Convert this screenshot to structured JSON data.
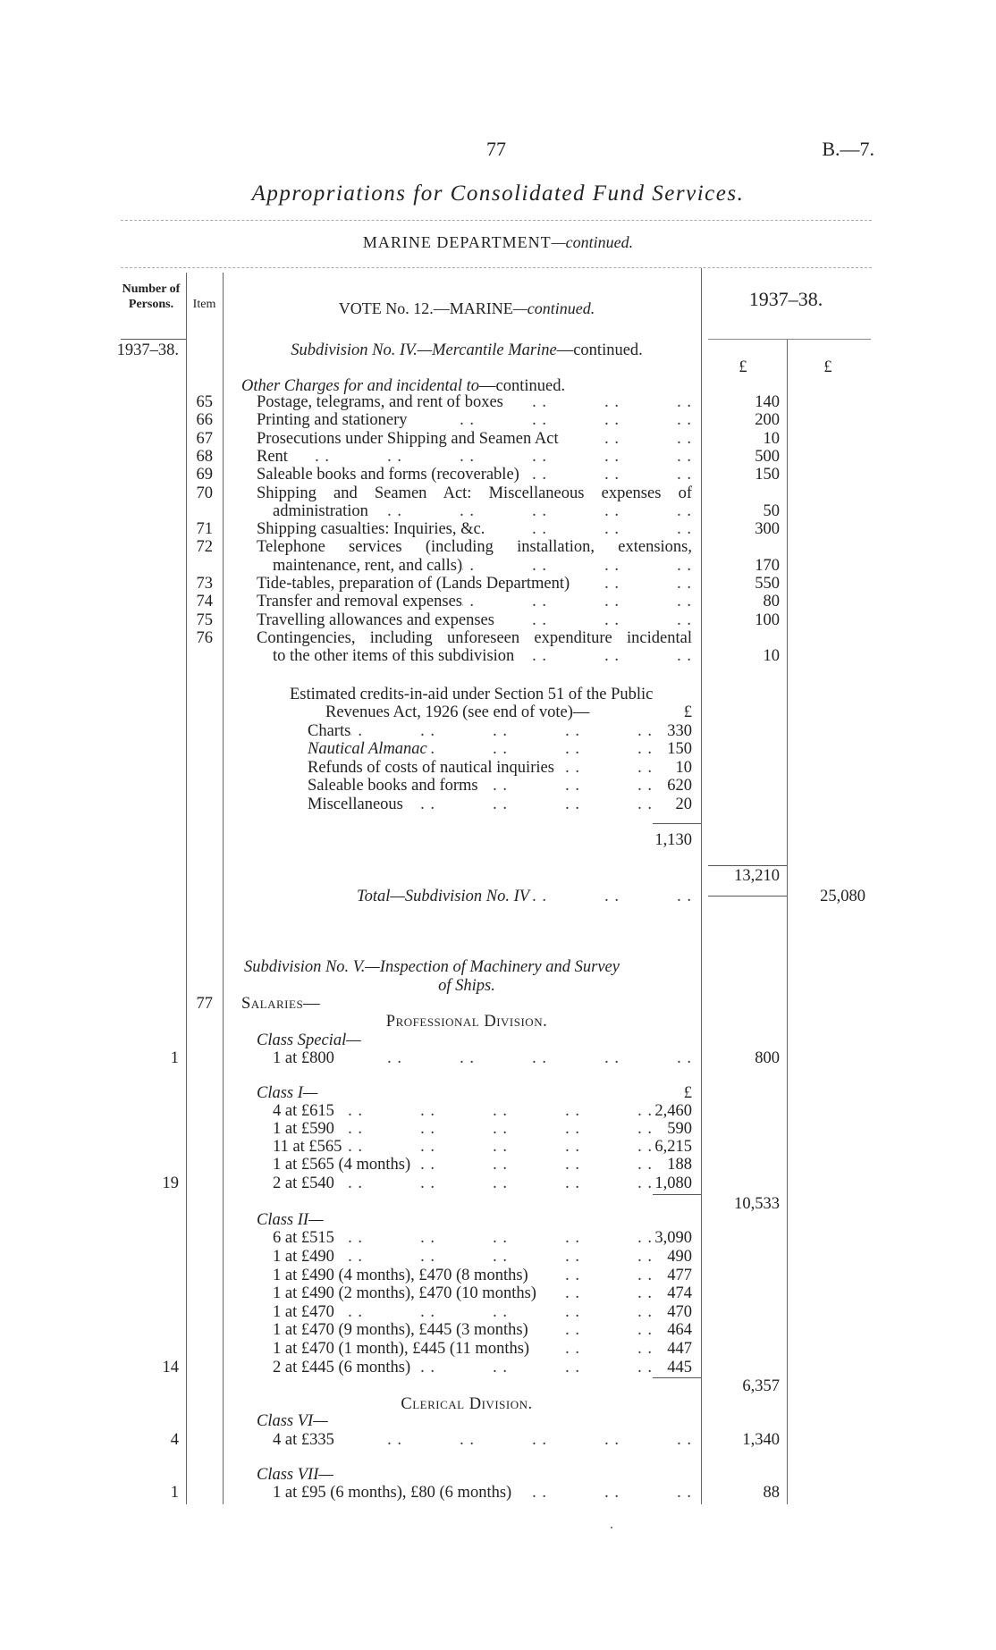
{
  "header": {
    "page_number": "77",
    "reference": "B.—7.",
    "title": "Appropriations for Consolidated Fund Services.",
    "department": "MARINE DEPARTMENT",
    "department_suffix": "—continued."
  },
  "table_header": {
    "number_of_persons": "Number of Persons.",
    "item": "Item",
    "vote": "VOTE No. 12.—MARINE",
    "vote_suffix": "—continued.",
    "year": "1937–38."
  },
  "rows": [
    {
      "persons": "1937–38.",
      "italic": "Subdivision No. IV.—Mercantile Marine",
      "text": "—continued."
    },
    {
      "col1": "£",
      "col2": "£"
    },
    {
      "italic": "Other Charges for and incidental to",
      "text": "—continued."
    },
    {
      "item": "65",
      "text": "Postage, telegrams, and rent of boxes",
      "col1": "140"
    },
    {
      "item": "66",
      "text": "Printing and stationery",
      "col1": "200"
    },
    {
      "item": "67",
      "text": "Prosecutions under Shipping and Seamen Act",
      "col1": "10"
    },
    {
      "item": "68",
      "text": "Rent",
      "col1": "500"
    },
    {
      "item": "69",
      "text": "Saleable books and forms (recoverable)",
      "col1": "150"
    },
    {
      "item": "70",
      "text": "Shipping and Seamen Act: Miscellaneous expenses of"
    },
    {
      "text": "administration",
      "col1": "50"
    },
    {
      "item": "71",
      "text": "Shipping casualties: Inquiries, &c.",
      "col1": "300"
    },
    {
      "item": "72",
      "text": "Telephone services (including installation, extensions,"
    },
    {
      "text": "maintenance, rent, and calls)",
      "col1": "170"
    },
    {
      "item": "73",
      "text": "Tide-tables, preparation of (Lands Department)",
      "col1": "550"
    },
    {
      "item": "74",
      "text": "Transfer and removal expenses",
      "col1": "80"
    },
    {
      "item": "75",
      "text": "Travelling allowances and expenses",
      "col1": "100"
    },
    {
      "item": "76",
      "text": "Contingencies, including unforeseen expenditure incidental"
    },
    {
      "text": "to the other items of this subdivision",
      "col1": "10"
    },
    {
      "text": "Estimated credits-in-aid under Section 51 of the Public"
    },
    {
      "text": "Revenues Act, 1926 (see end of vote)—",
      "inner": "£"
    },
    {
      "text": "Charts",
      "inner": "330"
    },
    {
      "italic": "Nautical Almanac",
      "inner": "150"
    },
    {
      "text": "Refunds of costs of nautical inquiries",
      "inner": "10"
    },
    {
      "text": "Saleable books and forms",
      "inner": "620"
    },
    {
      "text": "Miscellaneous",
      "inner": "20"
    },
    {
      "inner": "1,130"
    },
    {
      "col1": "13,210"
    },
    {
      "italic": "Total—Subdivision No. IV",
      "col2": "25,080"
    },
    {
      "italic": "Subdivision No. V.—Inspection of Machinery and Survey"
    },
    {
      "italic": "of Ships."
    },
    {
      "item": "77",
      "text": "Salaries—"
    },
    {
      "text": "Professional Division."
    },
    {
      "italic": "Class Special—"
    },
    {
      "persons": "1",
      "text": "1 at £800",
      "col1": "800"
    },
    {
      "italic": "Class I—",
      "inner": "£"
    },
    {
      "text": "4 at £615",
      "inner": "2,460"
    },
    {
      "text": "1 at £590",
      "inner": "590"
    },
    {
      "text": "11 at £565",
      "inner": "6,215"
    },
    {
      "text": "1 at £565 (4 months)",
      "inner": "188"
    },
    {
      "persons": "19",
      "text": "2 at £540",
      "inner": "1,080"
    },
    {
      "col1": "10,533"
    },
    {
      "italic": "Class II—"
    },
    {
      "text": "6 at £515",
      "inner": "3,090"
    },
    {
      "text": "1 at £490",
      "inner": "490"
    },
    {
      "text": "1 at £490 (4 months), £470 (8 months)",
      "inner": "477"
    },
    {
      "text": "1 at £490 (2 months), £470 (10 months)",
      "inner": "474"
    },
    {
      "text": "1 at £470",
      "inner": "470"
    },
    {
      "text": "1 at £470 (9 months), £445 (3 months)",
      "inner": "464"
    },
    {
      "text": "1 at £470 (1 month), £445 (11 months)",
      "inner": "447"
    },
    {
      "persons": "14",
      "text": "2 at £445 (6 months)",
      "inner": "445"
    },
    {
      "col1": "6,357"
    },
    {
      "text": "Clerical Division."
    },
    {
      "italic": "Class VI—"
    },
    {
      "persons": "4",
      "text": "4 at £335",
      "col1": "1,340"
    },
    {
      "italic": "Class VII—"
    },
    {
      "persons": "1",
      "text": "1 at £95 (6 months), £80 (6 months)",
      "col1": "88"
    }
  ]
}
